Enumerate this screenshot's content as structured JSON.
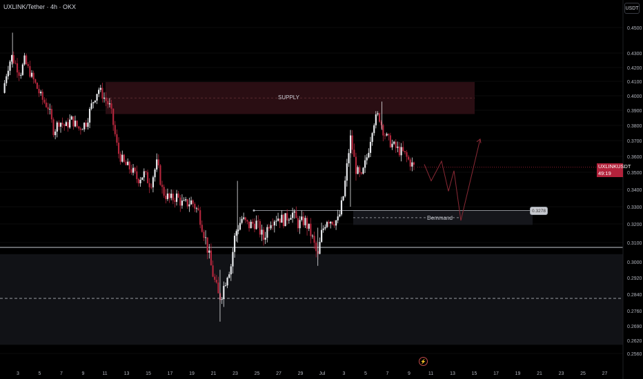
{
  "header": {
    "title": "UXLINK/Tether · 4h · OKX",
    "unit_badge": "USDT"
  },
  "price_tag": {
    "symbol": "UXLINKUSDT",
    "price": "0.3533",
    "countdown": "49:19",
    "color": "#b2223b"
  },
  "zones": {
    "supply": {
      "label": "SUPPLY",
      "top": 0.4095,
      "bottom": 0.3875
    },
    "demand": {
      "label": "Demmand",
      "top": 0.3278,
      "bottom": 0.3195,
      "value_tag": "0.3278"
    },
    "lower_box": {
      "top": 0.304,
      "bottom": 0.26
    },
    "hline": 0.3075,
    "dashed_line": 0.282
  },
  "projection": [
    {
      "x": 615,
      "y": 0.355
    },
    {
      "x": 625,
      "y": 0.345
    },
    {
      "x": 640,
      "y": 0.357
    },
    {
      "x": 650,
      "y": 0.339
    },
    {
      "x": 658,
      "y": 0.351
    },
    {
      "x": 668,
      "y": 0.322
    },
    {
      "x": 696,
      "y": 0.371
    }
  ],
  "colors": {
    "up": "#e8eaed",
    "down": "#b3263c",
    "supply_fill": "#2a0e13",
    "box_fill": "#111216",
    "grid": "#0c0c0c"
  },
  "chart_data": {
    "type": "candlestick",
    "title": "UXLINK/Tether · 4h · OKX",
    "y_ticks": [
      "0.4500",
      "0.4300",
      "0.4200",
      "0.4100",
      "0.4000",
      "0.3900",
      "0.3800",
      "0.3700",
      "0.3600",
      "0.3500",
      "0.3400",
      "0.3300",
      "0.3200",
      "0.3100",
      "0.3000",
      "0.2920",
      "0.2840",
      "0.2760",
      "0.2690",
      "0.2620",
      "0.2560"
    ],
    "x_ticks": [
      {
        "label": "3",
        "day": 3
      },
      {
        "label": "5",
        "day": 5
      },
      {
        "label": "7",
        "day": 7
      },
      {
        "label": "9",
        "day": 9
      },
      {
        "label": "11",
        "day": 11
      },
      {
        "label": "13",
        "day": 13
      },
      {
        "label": "15",
        "day": 15
      },
      {
        "label": "17",
        "day": 17
      },
      {
        "label": "19",
        "day": 19
      },
      {
        "label": "21",
        "day": 21
      },
      {
        "label": "23",
        "day": 23
      },
      {
        "label": "25",
        "day": 25
      },
      {
        "label": "27",
        "day": 27
      },
      {
        "label": "29",
        "day": 29
      },
      {
        "label": "Jul",
        "day": 31
      },
      {
        "label": "3",
        "day": 33
      },
      {
        "label": "5",
        "day": 35
      },
      {
        "label": "7",
        "day": 37
      },
      {
        "label": "9",
        "day": 39
      },
      {
        "label": "11",
        "day": 41
      },
      {
        "label": "13",
        "day": 43
      },
      {
        "label": "15",
        "day": 45
      },
      {
        "label": "17",
        "day": 47
      },
      {
        "label": "19",
        "day": 49
      },
      {
        "label": "21",
        "day": 51
      },
      {
        "label": "23",
        "day": 53
      },
      {
        "label": "25",
        "day": 55
      },
      {
        "label": "27",
        "day": 57
      }
    ],
    "path": [
      [
        1.6,
        0.402
      ],
      [
        2.0,
        0.418
      ],
      [
        2.4,
        0.428
      ],
      [
        2.8,
        0.422
      ],
      [
        3.2,
        0.415
      ],
      [
        3.6,
        0.425
      ],
      [
        4.0,
        0.418
      ],
      [
        4.6,
        0.408
      ],
      [
        5.2,
        0.398
      ],
      [
        5.8,
        0.392
      ],
      [
        6.3,
        0.376
      ],
      [
        6.8,
        0.383
      ],
      [
        7.4,
        0.379
      ],
      [
        7.9,
        0.384
      ],
      [
        8.6,
        0.378
      ],
      [
        9.3,
        0.382
      ],
      [
        9.8,
        0.394
      ],
      [
        10.4,
        0.405
      ],
      [
        11.0,
        0.398
      ],
      [
        11.5,
        0.392
      ],
      [
        12.2,
        0.363
      ],
      [
        12.8,
        0.355
      ],
      [
        13.4,
        0.352
      ],
      [
        14.0,
        0.346
      ],
      [
        14.6,
        0.349
      ],
      [
        15.2,
        0.343
      ],
      [
        15.8,
        0.356
      ],
      [
        16.3,
        0.339
      ],
      [
        17.0,
        0.334
      ],
      [
        17.6,
        0.336
      ],
      [
        18.2,
        0.331
      ],
      [
        19.0,
        0.333
      ],
      [
        19.6,
        0.327
      ],
      [
        20.3,
        0.311
      ],
      [
        20.8,
        0.297
      ],
      [
        21.2,
        0.288
      ],
      [
        21.5,
        0.282
      ],
      [
        21.8,
        0.285
      ],
      [
        22.3,
        0.295
      ],
      [
        22.6,
        0.298
      ],
      [
        23.0,
        0.315
      ],
      [
        23.6,
        0.323
      ],
      [
        24.2,
        0.319
      ],
      [
        24.9,
        0.321
      ],
      [
        25.6,
        0.312
      ],
      [
        26.2,
        0.322
      ],
      [
        26.9,
        0.324
      ],
      [
        27.5,
        0.322
      ],
      [
        28.2,
        0.327
      ],
      [
        28.8,
        0.32
      ],
      [
        29.4,
        0.322
      ],
      [
        30.0,
        0.314
      ],
      [
        30.6,
        0.302
      ],
      [
        30.9,
        0.314
      ],
      [
        31.4,
        0.323
      ],
      [
        32.0,
        0.322
      ],
      [
        32.5,
        0.322
      ],
      [
        33.0,
        0.338
      ],
      [
        33.6,
        0.372
      ],
      [
        34.1,
        0.352
      ],
      [
        34.6,
        0.346
      ],
      [
        35.2,
        0.362
      ],
      [
        35.7,
        0.382
      ],
      [
        36.2,
        0.387
      ],
      [
        36.6,
        0.377
      ],
      [
        37.0,
        0.371
      ],
      [
        37.5,
        0.367
      ],
      [
        38.0,
        0.364
      ],
      [
        38.5,
        0.362
      ],
      [
        39.0,
        0.357
      ],
      [
        39.5,
        0.353
      ]
    ]
  }
}
